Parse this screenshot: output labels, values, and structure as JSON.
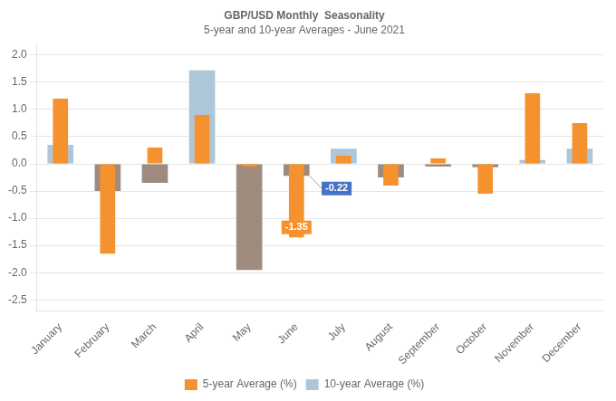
{
  "chart_data": {
    "type": "bar",
    "title": "GBP/USD Monthly  Seasonality",
    "subtitle": "5-year and 10-year Averages - June 2021",
    "categories": [
      "January",
      "February",
      "March",
      "April",
      "May",
      "June",
      "July",
      "August",
      "September",
      "October",
      "November",
      "December"
    ],
    "series": [
      {
        "name": "5-year Average (%)",
        "color": "#f5922f",
        "values": [
          1.2,
          -1.65,
          0.3,
          0.9,
          -0.05,
          -1.35,
          0.15,
          -0.4,
          0.1,
          -0.55,
          1.3,
          0.75
        ]
      },
      {
        "name": "10-year Average (%)",
        "color": "#adc6d8",
        "colors": [
          "#adc6d8",
          "#9e8b7d",
          "#9e8b7d",
          "#adc6d8",
          "#9e8b7d",
          "#9e8b7d",
          "#adc6d8",
          "#9e8b7d",
          "#9e8b7d",
          "#9e8b7d",
          "#adc6d8",
          "#adc6d8"
        ],
        "values": [
          0.35,
          -0.5,
          -0.35,
          1.72,
          -1.95,
          -0.22,
          0.28,
          -0.25,
          -0.05,
          -0.06,
          0.07,
          0.28
        ]
      }
    ],
    "annotations": [
      {
        "text": "-1.35",
        "series": "5-year Average (%)",
        "category": "June",
        "color": "#f5922f"
      },
      {
        "text": "-0.22",
        "series": "10-year Average (%)",
        "category": "June",
        "color": "#4472c4"
      }
    ],
    "ylim": [
      -2.7,
      2.2
    ],
    "yticks": [
      -2.5,
      {
        "value": -2,
        "label": "-2.0"
      },
      -1.5,
      {
        "value": -1,
        "label": "-1.0"
      },
      -0.5,
      {
        "value": 0,
        "label": "0.0"
      },
      0.5,
      {
        "value": 1,
        "label": "1.0"
      },
      1.5,
      {
        "value": 2,
        "label": "2.0"
      }
    ],
    "grid": true,
    "legend": "bottom"
  }
}
